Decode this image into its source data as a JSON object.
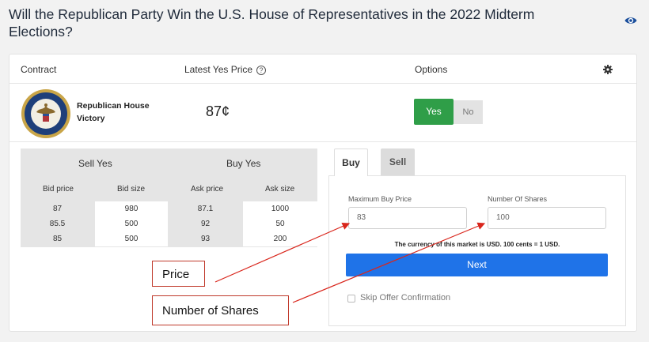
{
  "page": {
    "title": "Will the Republican Party Win the U.S. House of Representatives in the 2022 Midterm Elections?",
    "watch_icon": "eye-icon"
  },
  "table_header": {
    "contract": "Contract",
    "latest_yes_price": "Latest Yes Price",
    "help_glyph": "?",
    "options": "Options",
    "settings_icon": "gear-icon"
  },
  "contract": {
    "name": "Republican House Victory",
    "latest_price": "87¢",
    "yes_label": "Yes",
    "no_label": "No",
    "logo": "us-house-seal-icon"
  },
  "order_book": {
    "sell_yes": "Sell Yes",
    "buy_yes": "Buy Yes",
    "columns": [
      "Bid price",
      "Bid size",
      "Ask price",
      "Ask size"
    ],
    "rows": [
      [
        "87",
        "980",
        "87.1",
        "1000"
      ],
      [
        "85.5",
        "500",
        "92",
        "50"
      ],
      [
        "85",
        "500",
        "93",
        "200"
      ]
    ]
  },
  "order_form": {
    "tabs": [
      "Buy",
      "Sell"
    ],
    "active_tab": "Buy",
    "max_buy_price_label": "Maximum Buy Price",
    "max_buy_price_placeholder": "83",
    "shares_label": "Number Of Shares",
    "shares_placeholder": "100",
    "currency_note": "The currency of this market is USD. 100 cents = 1 USD.",
    "next_label": "Next",
    "skip_confirmation_label": "Skip Offer Confirmation"
  },
  "annotations": {
    "price_label": "Price",
    "shares_label": "Number of Shares",
    "arrow_color": "#d9261c"
  },
  "colors": {
    "yes_green": "#2f9e48",
    "next_blue": "#1f73e8"
  }
}
